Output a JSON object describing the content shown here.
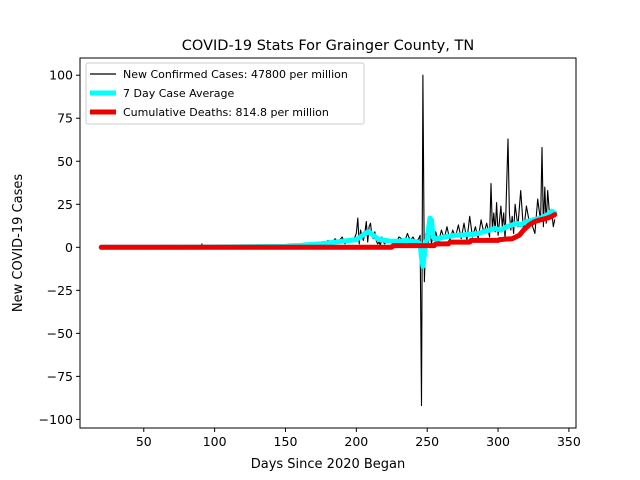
{
  "chart_data": {
    "type": "line",
    "title": "COVID-19 Stats For Grainger County, TN",
    "xlabel": "Days Since 2020 Began",
    "ylabel": "New COVID-19 Cases",
    "xlim": [
      5,
      355
    ],
    "ylim": [
      -105,
      110
    ],
    "xticks": [
      50,
      100,
      150,
      200,
      250,
      300,
      350
    ],
    "yticks": [
      -100,
      -75,
      -50,
      -25,
      0,
      25,
      50,
      75,
      100
    ],
    "grid": false,
    "legend_position": "top-left",
    "series": [
      {
        "name": "New Confirmed Cases: 47800 per million",
        "color": "#000000",
        "x": [
          20,
          25,
          30,
          35,
          40,
          45,
          50,
          55,
          60,
          65,
          70,
          75,
          80,
          85,
          90,
          91,
          92,
          95,
          100,
          105,
          110,
          115,
          120,
          125,
          130,
          135,
          140,
          145,
          150,
          152,
          153,
          155,
          157,
          160,
          162,
          165,
          167,
          170,
          172,
          175,
          177,
          180,
          182,
          185,
          187,
          190,
          192,
          194,
          196,
          198,
          200,
          201,
          202,
          203,
          204,
          205,
          206,
          207,
          208,
          209,
          210,
          211,
          212,
          213,
          214,
          215,
          216,
          217,
          218,
          219,
          220,
          222,
          224,
          226,
          228,
          230,
          232,
          234,
          236,
          238,
          240,
          242,
          244,
          245,
          246,
          247,
          248,
          249,
          250,
          251,
          252,
          253,
          254,
          255,
          256,
          258,
          260,
          262,
          264,
          266,
          268,
          270,
          272,
          274,
          276,
          278,
          280,
          282,
          284,
          286,
          288,
          290,
          292,
          294,
          295,
          296,
          297,
          298,
          299,
          300,
          302,
          303,
          304,
          305,
          306,
          307,
          308,
          309,
          310,
          311,
          312,
          314,
          316,
          318,
          320,
          322,
          324,
          326,
          328,
          330,
          331,
          332,
          333,
          334,
          335,
          336,
          337,
          338,
          339,
          340
        ],
        "y": [
          0,
          0,
          0,
          0,
          0,
          0,
          0,
          0,
          0,
          0,
          0,
          0,
          0,
          0,
          0,
          2,
          0,
          0,
          1,
          0,
          0,
          0,
          0,
          0,
          1,
          0,
          0,
          0,
          0,
          2,
          0,
          1,
          0,
          1,
          2,
          0,
          1,
          2,
          0,
          3,
          1,
          4,
          2,
          5,
          3,
          6,
          2,
          5,
          3,
          4,
          8,
          17,
          2,
          10,
          6,
          4,
          8,
          15,
          3,
          12,
          14,
          7,
          5,
          9,
          4,
          2,
          3,
          1,
          6,
          3,
          2,
          5,
          3,
          4,
          2,
          6,
          5,
          3,
          8,
          4,
          6,
          3,
          5,
          7,
          -92,
          100,
          -20,
          8,
          2,
          3,
          10,
          2,
          8,
          4,
          9,
          3,
          10,
          5,
          12,
          4,
          10,
          6,
          13,
          5,
          14,
          4,
          18,
          6,
          12,
          5,
          16,
          8,
          14,
          6,
          37,
          10,
          20,
          9,
          26,
          7,
          24,
          12,
          20,
          4,
          35,
          63,
          20,
          10,
          18,
          8,
          25,
          12,
          33,
          9,
          24,
          15,
          13,
          8,
          28,
          15,
          58,
          12,
          35,
          14,
          33,
          22,
          18,
          20,
          12,
          16
        ]
      },
      {
        "name": "7 Day Case Average",
        "color": "#00ffff",
        "x": [
          20,
          50,
          100,
          150,
          155,
          160,
          165,
          170,
          175,
          180,
          185,
          190,
          195,
          200,
          203,
          206,
          209,
          212,
          215,
          220,
          225,
          230,
          235,
          240,
          243,
          245,
          246,
          247,
          248,
          249,
          250,
          252,
          253,
          254,
          255,
          258,
          262,
          266,
          270,
          274,
          278,
          282,
          286,
          290,
          294,
          298,
          302,
          306,
          310,
          313,
          316,
          320,
          325,
          330,
          335,
          338,
          340
        ],
        "y": [
          0,
          0,
          0.2,
          0.5,
          1,
          1,
          1.5,
          1.8,
          2,
          2.5,
          3,
          3.5,
          4,
          4.5,
          6,
          8,
          9,
          7,
          5,
          4,
          3.5,
          3.5,
          4,
          3.5,
          3,
          2,
          -6,
          -11,
          -4,
          3,
          5,
          17,
          16,
          6,
          5,
          5,
          6,
          6.5,
          7,
          7,
          7.5,
          7.5,
          8,
          9,
          10,
          11,
          10,
          12,
          13,
          14,
          13,
          15,
          16,
          17,
          19,
          21,
          20
        ]
      },
      {
        "name": "Cumulative Deaths: 814.8 per million",
        "color": "#ee0000",
        "x": [
          20,
          100,
          200,
          225,
          226,
          255,
          256,
          265,
          266,
          280,
          281,
          300,
          301,
          310,
          315,
          318,
          322,
          326,
          330,
          335,
          338,
          340
        ],
        "y": [
          0,
          0,
          0,
          0,
          1,
          1,
          2,
          2,
          3,
          3,
          4,
          4,
          4.5,
          5,
          7,
          10,
          13,
          15,
          16,
          17,
          18,
          19
        ]
      }
    ]
  }
}
